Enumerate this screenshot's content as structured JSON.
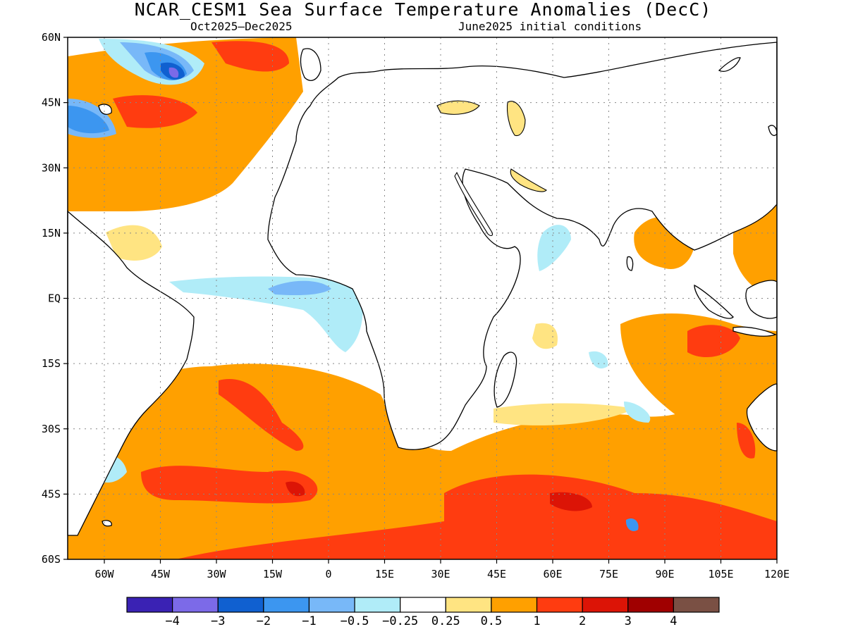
{
  "title": "NCAR_CESM1 Sea Surface Temperature Anomalies (DecC)",
  "subtitle_left": "Oct2025–Dec2025",
  "subtitle_right": "June2025 initial conditions",
  "lat_labels": [
    "60N",
    "45N",
    "30N",
    "15N",
    "EQ",
    "15S",
    "30S",
    "45S",
    "60S"
  ],
  "lon_labels": [
    "60W",
    "45W",
    "30W",
    "15W",
    "0",
    "15E",
    "30E",
    "45E",
    "60E",
    "75E",
    "90E",
    "105E",
    "120E"
  ],
  "colorbar": {
    "colors": [
      "#3a22b4",
      "#7c6ae8",
      "#1060d0",
      "#3c96f0",
      "#78b8f8",
      "#b0ecf8",
      "#ffffff",
      "#ffe482",
      "#ffa000",
      "#ff3c10",
      "#dc1406",
      "#a00000",
      "#7a5044"
    ],
    "labels": [
      "-4",
      "-3",
      "-2",
      "-1",
      "-0.5",
      "-0.25",
      "0.25",
      "0.5",
      "1",
      "2",
      "3",
      "4"
    ]
  },
  "legend_labels_display": [
    "−4",
    "−3",
    "−2",
    "−1",
    "−0.5",
    "−0.25",
    "0.25",
    "0.5",
    "1",
    "2",
    "3",
    "4"
  ]
}
